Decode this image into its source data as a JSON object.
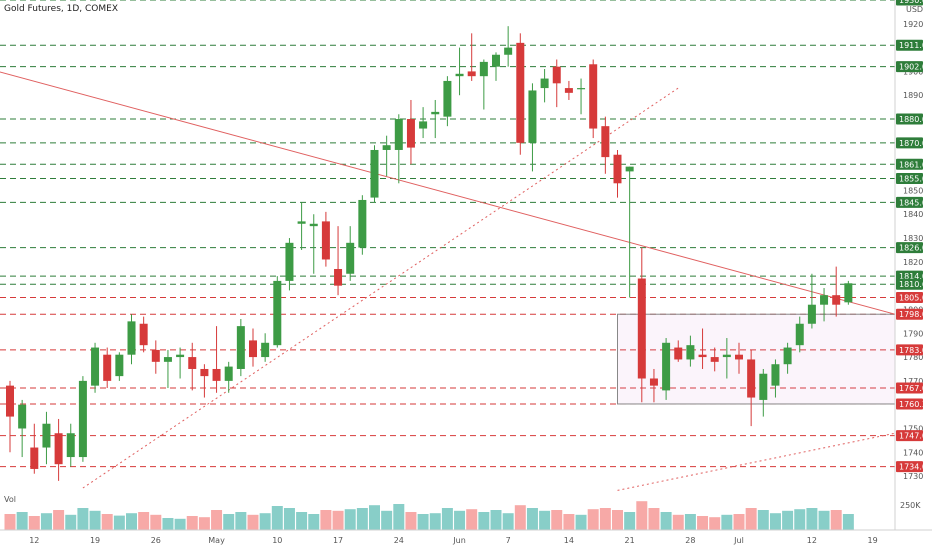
{
  "chart_data": {
    "type": "candlestick",
    "title": "Gold Futures, 1D, COMEX",
    "currency": "USD",
    "volume_label": "Vol",
    "volume_tick": "250K",
    "y_ticks": [
      1730,
      1740,
      1750,
      1760,
      1770,
      1780,
      1790,
      1800,
      1810,
      1820,
      1830,
      1840,
      1850,
      1860,
      1870,
      1880,
      1890,
      1900,
      1910,
      1920
    ],
    "ylim": [
      1725,
      1930
    ],
    "x_labels": [
      {
        "label": "12",
        "index": 2
      },
      {
        "label": "19",
        "index": 7
      },
      {
        "label": "26",
        "index": 12
      },
      {
        "label": "May",
        "index": 17
      },
      {
        "label": "10",
        "index": 22
      },
      {
        "label": "17",
        "index": 27
      },
      {
        "label": "24",
        "index": 32
      },
      {
        "label": "Jun",
        "index": 37
      },
      {
        "label": "7",
        "index": 41
      },
      {
        "label": "14",
        "index": 46
      },
      {
        "label": "21",
        "index": 51
      },
      {
        "label": "28",
        "index": 56
      },
      {
        "label": "Jul",
        "index": 60
      },
      {
        "label": "12",
        "index": 66
      },
      {
        "label": "19",
        "index": 71
      }
    ],
    "price_levels": [
      {
        "value": 1930.0,
        "label": "1930.0",
        "style": "green"
      },
      {
        "value": 1911.0,
        "label": "1911.0",
        "style": "green"
      },
      {
        "value": 1902.0,
        "label": "1902.0",
        "style": "green"
      },
      {
        "value": 1880.0,
        "label": "1880.0",
        "style": "green"
      },
      {
        "value": 1870.0,
        "label": "1870.0",
        "style": "green"
      },
      {
        "value": 1861.0,
        "label": "1861.0",
        "style": "green"
      },
      {
        "value": 1855.0,
        "label": "1855.0",
        "style": "green"
      },
      {
        "value": 1845.0,
        "label": "1845.0",
        "style": "green"
      },
      {
        "value": 1826.0,
        "label": "1826.0",
        "style": "green"
      },
      {
        "value": 1814.0,
        "label": "1814.0",
        "style": "green"
      },
      {
        "value": 1810.6,
        "label": "1810.6",
        "style": "green"
      },
      {
        "value": 1805.0,
        "label": "1805.0",
        "style": "red"
      },
      {
        "value": 1798.0,
        "label": "1798.0",
        "style": "red"
      },
      {
        "value": 1783.0,
        "label": "1783.0",
        "style": "red"
      },
      {
        "value": 1767.0,
        "label": "1767.0",
        "style": "red"
      },
      {
        "value": 1760.3,
        "label": "1760.3",
        "style": "red"
      },
      {
        "value": 1747.0,
        "label": "1747.0",
        "style": "red"
      },
      {
        "value": 1734.0,
        "label": "1734.0",
        "style": "red"
      }
    ],
    "candles": [
      {
        "o": 1768,
        "h": 1770,
        "l": 1740,
        "c": 1755,
        "v": 0.4
      },
      {
        "o": 1750,
        "h": 1762,
        "l": 1738,
        "c": 1760,
        "v": 0.45
      },
      {
        "o": 1742,
        "h": 1752,
        "l": 1731,
        "c": 1733,
        "v": 0.35
      },
      {
        "o": 1742,
        "h": 1757,
        "l": 1735,
        "c": 1752,
        "v": 0.42
      },
      {
        "o": 1748,
        "h": 1754,
        "l": 1728,
        "c": 1735,
        "v": 0.5
      },
      {
        "o": 1738,
        "h": 1752,
        "l": 1734,
        "c": 1748,
        "v": 0.38
      },
      {
        "o": 1738,
        "h": 1772,
        "l": 1736,
        "c": 1770,
        "v": 0.55
      },
      {
        "o": 1768,
        "h": 1786,
        "l": 1765,
        "c": 1784,
        "v": 0.48
      },
      {
        "o": 1781,
        "h": 1784,
        "l": 1767,
        "c": 1770,
        "v": 0.4
      },
      {
        "o": 1772,
        "h": 1782,
        "l": 1770,
        "c": 1781,
        "v": 0.36
      },
      {
        "o": 1781,
        "h": 1798,
        "l": 1777,
        "c": 1795,
        "v": 0.42
      },
      {
        "o": 1794,
        "h": 1797,
        "l": 1782,
        "c": 1785,
        "v": 0.45
      },
      {
        "o": 1783,
        "h": 1787,
        "l": 1773,
        "c": 1778,
        "v": 0.38
      },
      {
        "o": 1778,
        "h": 1783,
        "l": 1767,
        "c": 1780,
        "v": 0.3
      },
      {
        "o": 1780,
        "h": 1784,
        "l": 1771,
        "c": 1781,
        "v": 0.28
      },
      {
        "o": 1780,
        "h": 1786,
        "l": 1766,
        "c": 1775,
        "v": 0.35
      },
      {
        "o": 1775,
        "h": 1777,
        "l": 1763,
        "c": 1772,
        "v": 0.32
      },
      {
        "o": 1775,
        "h": 1793,
        "l": 1765,
        "c": 1770,
        "v": 0.5
      },
      {
        "o": 1770,
        "h": 1778,
        "l": 1765,
        "c": 1776,
        "v": 0.4
      },
      {
        "o": 1775,
        "h": 1796,
        "l": 1772,
        "c": 1793,
        "v": 0.45
      },
      {
        "o": 1787,
        "h": 1792,
        "l": 1776,
        "c": 1780,
        "v": 0.38
      },
      {
        "o": 1780,
        "h": 1790,
        "l": 1778,
        "c": 1786,
        "v": 0.42
      },
      {
        "o": 1785,
        "h": 1814,
        "l": 1784,
        "c": 1812,
        "v": 0.6
      },
      {
        "o": 1812,
        "h": 1830,
        "l": 1808,
        "c": 1828,
        "v": 0.55
      },
      {
        "o": 1836,
        "h": 1845,
        "l": 1825,
        "c": 1837,
        "v": 0.45
      },
      {
        "o": 1835,
        "h": 1840,
        "l": 1815,
        "c": 1836,
        "v": 0.4
      },
      {
        "o": 1837,
        "h": 1841,
        "l": 1818,
        "c": 1821,
        "v": 0.5
      },
      {
        "o": 1817,
        "h": 1835,
        "l": 1806,
        "c": 1810,
        "v": 0.48
      },
      {
        "o": 1815,
        "h": 1835,
        "l": 1812,
        "c": 1828,
        "v": 0.52
      },
      {
        "o": 1826,
        "h": 1848,
        "l": 1823,
        "c": 1846,
        "v": 0.55
      },
      {
        "o": 1847,
        "h": 1869,
        "l": 1845,
        "c": 1867,
        "v": 0.62
      },
      {
        "o": 1867,
        "h": 1873,
        "l": 1856,
        "c": 1869,
        "v": 0.48
      },
      {
        "o": 1867,
        "h": 1882,
        "l": 1853,
        "c": 1880,
        "v": 0.65
      },
      {
        "o": 1880,
        "h": 1888,
        "l": 1861,
        "c": 1868,
        "v": 0.45
      },
      {
        "o": 1876,
        "h": 1885,
        "l": 1872,
        "c": 1879,
        "v": 0.4
      },
      {
        "o": 1882,
        "h": 1888,
        "l": 1872,
        "c": 1883,
        "v": 0.42
      },
      {
        "o": 1881,
        "h": 1898,
        "l": 1877,
        "c": 1896,
        "v": 0.55
      },
      {
        "o": 1898,
        "h": 1910,
        "l": 1890,
        "c": 1899,
        "v": 0.48
      },
      {
        "o": 1900,
        "h": 1916,
        "l": 1896,
        "c": 1898,
        "v": 0.52
      },
      {
        "o": 1898,
        "h": 1905,
        "l": 1884,
        "c": 1904,
        "v": 0.45
      },
      {
        "o": 1902,
        "h": 1908,
        "l": 1896,
        "c": 1907,
        "v": 0.5
      },
      {
        "o": 1907,
        "h": 1919,
        "l": 1902,
        "c": 1910,
        "v": 0.42
      },
      {
        "o": 1912,
        "h": 1916,
        "l": 1865,
        "c": 1870,
        "v": 0.62
      },
      {
        "o": 1870,
        "h": 1895,
        "l": 1858,
        "c": 1892,
        "v": 0.55
      },
      {
        "o": 1893,
        "h": 1901,
        "l": 1887,
        "c": 1897,
        "v": 0.48
      },
      {
        "o": 1902,
        "h": 1905,
        "l": 1885,
        "c": 1895,
        "v": 0.5
      },
      {
        "o": 1893,
        "h": 1896,
        "l": 1888,
        "c": 1891,
        "v": 0.4
      },
      {
        "o": 1893,
        "h": 1897,
        "l": 1882,
        "c": 1893,
        "v": 0.38
      },
      {
        "o": 1903,
        "h": 1905,
        "l": 1872,
        "c": 1876,
        "v": 0.52
      },
      {
        "o": 1877,
        "h": 1881,
        "l": 1857,
        "c": 1864,
        "v": 0.55
      },
      {
        "o": 1865,
        "h": 1867,
        "l": 1847,
        "c": 1853,
        "v": 0.5
      },
      {
        "o": 1858,
        "h": 1860,
        "l": 1805,
        "c": 1860,
        "v": 0.45
      },
      {
        "o": 1813,
        "h": 1826,
        "l": 1761,
        "c": 1771,
        "v": 0.72
      },
      {
        "o": 1771,
        "h": 1775,
        "l": 1761,
        "c": 1768,
        "v": 0.55
      },
      {
        "o": 1766,
        "h": 1788,
        "l": 1762,
        "c": 1786,
        "v": 0.45
      },
      {
        "o": 1784,
        "h": 1787,
        "l": 1778,
        "c": 1779,
        "v": 0.38
      },
      {
        "o": 1779,
        "h": 1789,
        "l": 1776,
        "c": 1785,
        "v": 0.4
      },
      {
        "o": 1781,
        "h": 1792,
        "l": 1775,
        "c": 1780,
        "v": 0.35
      },
      {
        "o": 1780,
        "h": 1784,
        "l": 1774,
        "c": 1778,
        "v": 0.32
      },
      {
        "o": 1780,
        "h": 1788,
        "l": 1771,
        "c": 1781,
        "v": 0.38
      },
      {
        "o": 1781,
        "h": 1786,
        "l": 1773,
        "c": 1779,
        "v": 0.4
      },
      {
        "o": 1779,
        "h": 1783,
        "l": 1751,
        "c": 1763,
        "v": 0.55
      },
      {
        "o": 1762,
        "h": 1775,
        "l": 1755,
        "c": 1773,
        "v": 0.5
      },
      {
        "o": 1768,
        "h": 1779,
        "l": 1763,
        "c": 1777,
        "v": 0.42
      },
      {
        "o": 1777,
        "h": 1786,
        "l": 1773,
        "c": 1784,
        "v": 0.48
      },
      {
        "o": 1785,
        "h": 1797,
        "l": 1782,
        "c": 1794,
        "v": 0.52
      },
      {
        "o": 1794,
        "h": 1815,
        "l": 1792,
        "c": 1802,
        "v": 0.55
      },
      {
        "o": 1802,
        "h": 1809,
        "l": 1795,
        "c": 1806,
        "v": 0.48
      },
      {
        "o": 1806,
        "h": 1818,
        "l": 1797,
        "c": 1802,
        "v": 0.5
      },
      {
        "o": 1803,
        "h": 1812,
        "l": 1802,
        "c": 1811,
        "v": 0.4
      }
    ],
    "trendlines": [
      {
        "style": "solid",
        "from": {
          "index": -1,
          "value": 1900
        },
        "to": {
          "index": 75,
          "value": 1798
        }
      },
      {
        "style": "dotted",
        "from": {
          "index": 6,
          "value": 1725
        },
        "to": {
          "index": 55,
          "value": 1893
        }
      },
      {
        "style": "dotted",
        "from": {
          "index": 50,
          "value": 1724
        },
        "to": {
          "index": 75,
          "value": 1748
        }
      }
    ],
    "range_box": {
      "from_index": 50,
      "to_index": 75,
      "top": 1798,
      "bottom": 1760.3
    }
  }
}
